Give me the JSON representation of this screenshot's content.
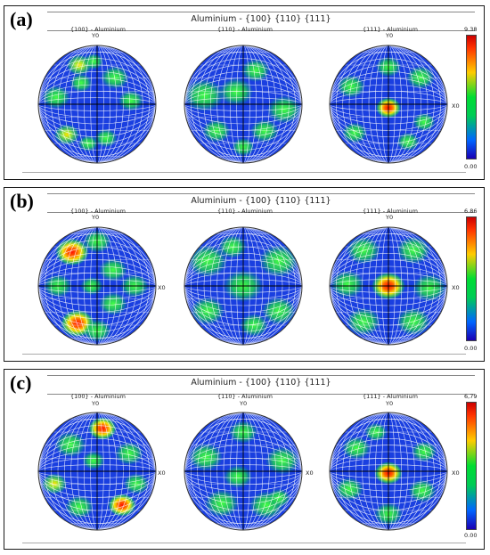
{
  "colors": {
    "low": "#0033ff",
    "mid": "#00cc44",
    "high": "#ff2200"
  },
  "panels": [
    {
      "letter": "(a)",
      "title": "Aluminium - {100} {110} {111}",
      "plots": [
        {
          "label": "{100} - Aluminium",
          "y_axis": "Y0",
          "x_axis": ""
        },
        {
          "label": "{110} - Aluminium",
          "y_axis": "",
          "x_axis": ""
        },
        {
          "label": "{111} - Aluminium",
          "y_axis": "Y0",
          "x_axis": "X0"
        }
      ],
      "colorbar": {
        "max": "9.38",
        "min": "0.00"
      }
    },
    {
      "letter": "(b)",
      "title": "Aluminium - {100} {110} {111}",
      "plots": [
        {
          "label": "{100} - Aluminium",
          "y_axis": "Y0",
          "x_axis": "X0"
        },
        {
          "label": "{110} - Aluminium",
          "y_axis": "",
          "x_axis": ""
        },
        {
          "label": "{111} - Aluminium",
          "y_axis": "Y0",
          "x_axis": "X0"
        }
      ],
      "colorbar": {
        "max": "6.86",
        "min": "0.00"
      }
    },
    {
      "letter": "(c)",
      "title": "Aluminium - {100} {110} {111}",
      "plots": [
        {
          "label": "{100} - Aluminium",
          "y_axis": "Y0",
          "x_axis": "X0"
        },
        {
          "label": "{110} - Aluminium",
          "y_axis": "Y0",
          "x_axis": "X0"
        },
        {
          "label": "{111} - Aluminium",
          "y_axis": "Y0",
          "x_axis": "X0"
        }
      ],
      "colorbar": {
        "max": "6,79",
        "min": "0.00"
      }
    }
  ]
}
